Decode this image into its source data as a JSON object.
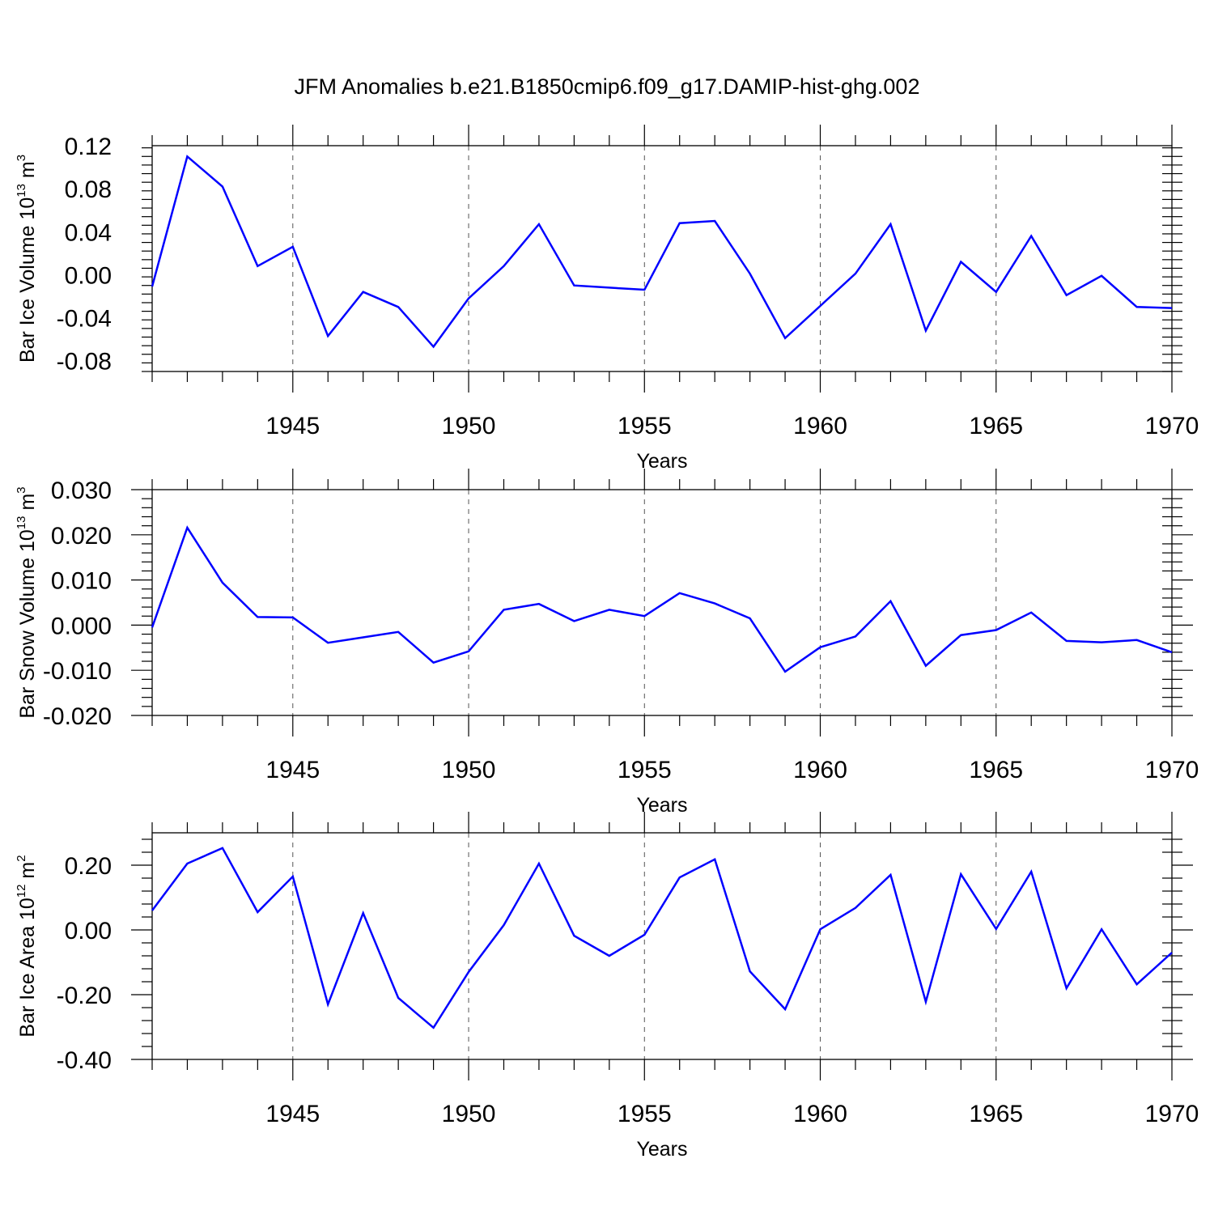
{
  "title": "JFM Anomalies b.e21.B1850cmip6.f09_g17.DAMIP-hist-ghg.002",
  "chart_data": [
    {
      "type": "line",
      "ylabel": {
        "text": "Bar Ice Volume 10",
        "exponent": "13",
        "unit": " m",
        "unit_exponent": "3"
      },
      "xlabel": "Years",
      "xlim": [
        1941,
        1970
      ],
      "ylim": [
        -0.09,
        0.12
      ],
      "yticks": [
        0.12,
        0.08,
        0.04,
        0.0,
        -0.04,
        -0.08
      ],
      "ytick_labels": [
        "0.12",
        "0.08",
        "0.04",
        "0.00",
        "-0.04",
        "-0.08"
      ],
      "xticks": [
        1945,
        1950,
        1955,
        1960,
        1965,
        1970
      ],
      "xtick_labels": [
        "1945",
        "1950",
        "1955",
        "1960",
        "1965",
        "1970"
      ],
      "grid": "vertical dashed at major x ticks",
      "line_color": "#0000ff",
      "x": [
        1941,
        1942,
        1943,
        1944,
        1945,
        1946,
        1947,
        1948,
        1949,
        1950,
        1951,
        1952,
        1953,
        1954,
        1955,
        1956,
        1957,
        1958,
        1959,
        1960,
        1961,
        1962,
        1963,
        1964,
        1965,
        1966,
        1967,
        1968,
        1969,
        1970
      ],
      "values": [
        -0.011,
        0.11,
        0.082,
        0.008,
        0.026,
        -0.057,
        -0.016,
        -0.03,
        -0.067,
        -0.022,
        0.008,
        0.047,
        -0.01,
        -0.012,
        -0.014,
        0.048,
        0.05,
        0.001,
        -0.059,
        -0.029,
        0.001,
        0.047,
        -0.052,
        0.012,
        -0.016,
        0.036,
        -0.019,
        -0.001,
        -0.03,
        -0.031
      ]
    },
    {
      "type": "line",
      "ylabel": {
        "text": "Bar Snow Volume 10",
        "exponent": "13",
        "unit": " m",
        "unit_exponent": "3"
      },
      "xlabel": "Years",
      "xlim": [
        1941,
        1970
      ],
      "ylim": [
        -0.02,
        0.03
      ],
      "yticks": [
        0.03,
        0.02,
        0.01,
        0.0,
        -0.01,
        -0.02
      ],
      "ytick_labels": [
        "0.030",
        "0.020",
        "0.010",
        "0.000",
        "-0.010",
        "-0.020"
      ],
      "xticks": [
        1945,
        1950,
        1955,
        1960,
        1965,
        1970
      ],
      "xtick_labels": [
        "1945",
        "1950",
        "1955",
        "1960",
        "1965",
        "1970"
      ],
      "grid": "vertical dashed at major x ticks",
      "line_color": "#0000ff",
      "x": [
        1941,
        1942,
        1943,
        1944,
        1945,
        1946,
        1947,
        1948,
        1949,
        1950,
        1951,
        1952,
        1953,
        1954,
        1955,
        1956,
        1957,
        1958,
        1959,
        1960,
        1961,
        1962,
        1963,
        1964,
        1965,
        1966,
        1967,
        1968,
        1969,
        1970
      ],
      "values": [
        -0.0005,
        0.0216,
        0.0094,
        0.0018,
        0.0017,
        -0.0039,
        -0.0027,
        -0.0015,
        -0.0083,
        -0.0058,
        0.0034,
        0.0047,
        0.0009,
        0.0034,
        0.002,
        0.0071,
        0.0048,
        0.0015,
        -0.0103,
        -0.0049,
        -0.0025,
        0.0053,
        -0.009,
        -0.0022,
        -0.0011,
        0.0028,
        -0.0035,
        -0.0038,
        -0.0033,
        -0.006
      ]
    },
    {
      "type": "line",
      "ylabel": {
        "text": "Bar Ice Area 10",
        "exponent": "12",
        "unit": " m",
        "unit_exponent": "2"
      },
      "xlabel": "Years",
      "xlim": [
        1941,
        1970
      ],
      "ylim": [
        -0.4,
        0.3
      ],
      "yticks": [
        0.2,
        0.0,
        -0.2,
        -0.4
      ],
      "ytick_labels": [
        "0.20",
        "0.00",
        "-0.20",
        "-0.40"
      ],
      "xticks": [
        1945,
        1950,
        1955,
        1960,
        1965,
        1970
      ],
      "xtick_labels": [
        "1945",
        "1950",
        "1955",
        "1960",
        "1965",
        "1970"
      ],
      "grid": "vertical dashed at major x ticks",
      "line_color": "#0000ff",
      "x": [
        1941,
        1942,
        1943,
        1944,
        1945,
        1946,
        1947,
        1948,
        1949,
        1950,
        1951,
        1952,
        1953,
        1954,
        1955,
        1956,
        1957,
        1958,
        1959,
        1960,
        1961,
        1962,
        1963,
        1964,
        1965,
        1966,
        1967,
        1968,
        1969,
        1970
      ],
      "values": [
        0.06,
        0.205,
        0.253,
        0.055,
        0.165,
        -0.23,
        0.052,
        -0.21,
        -0.302,
        -0.13,
        0.015,
        0.205,
        -0.018,
        -0.08,
        -0.015,
        0.162,
        0.218,
        -0.128,
        -0.245,
        0.002,
        0.068,
        0.17,
        -0.222,
        0.172,
        0.003,
        0.18,
        -0.18,
        0.002,
        -0.168,
        -0.07
      ]
    }
  ]
}
